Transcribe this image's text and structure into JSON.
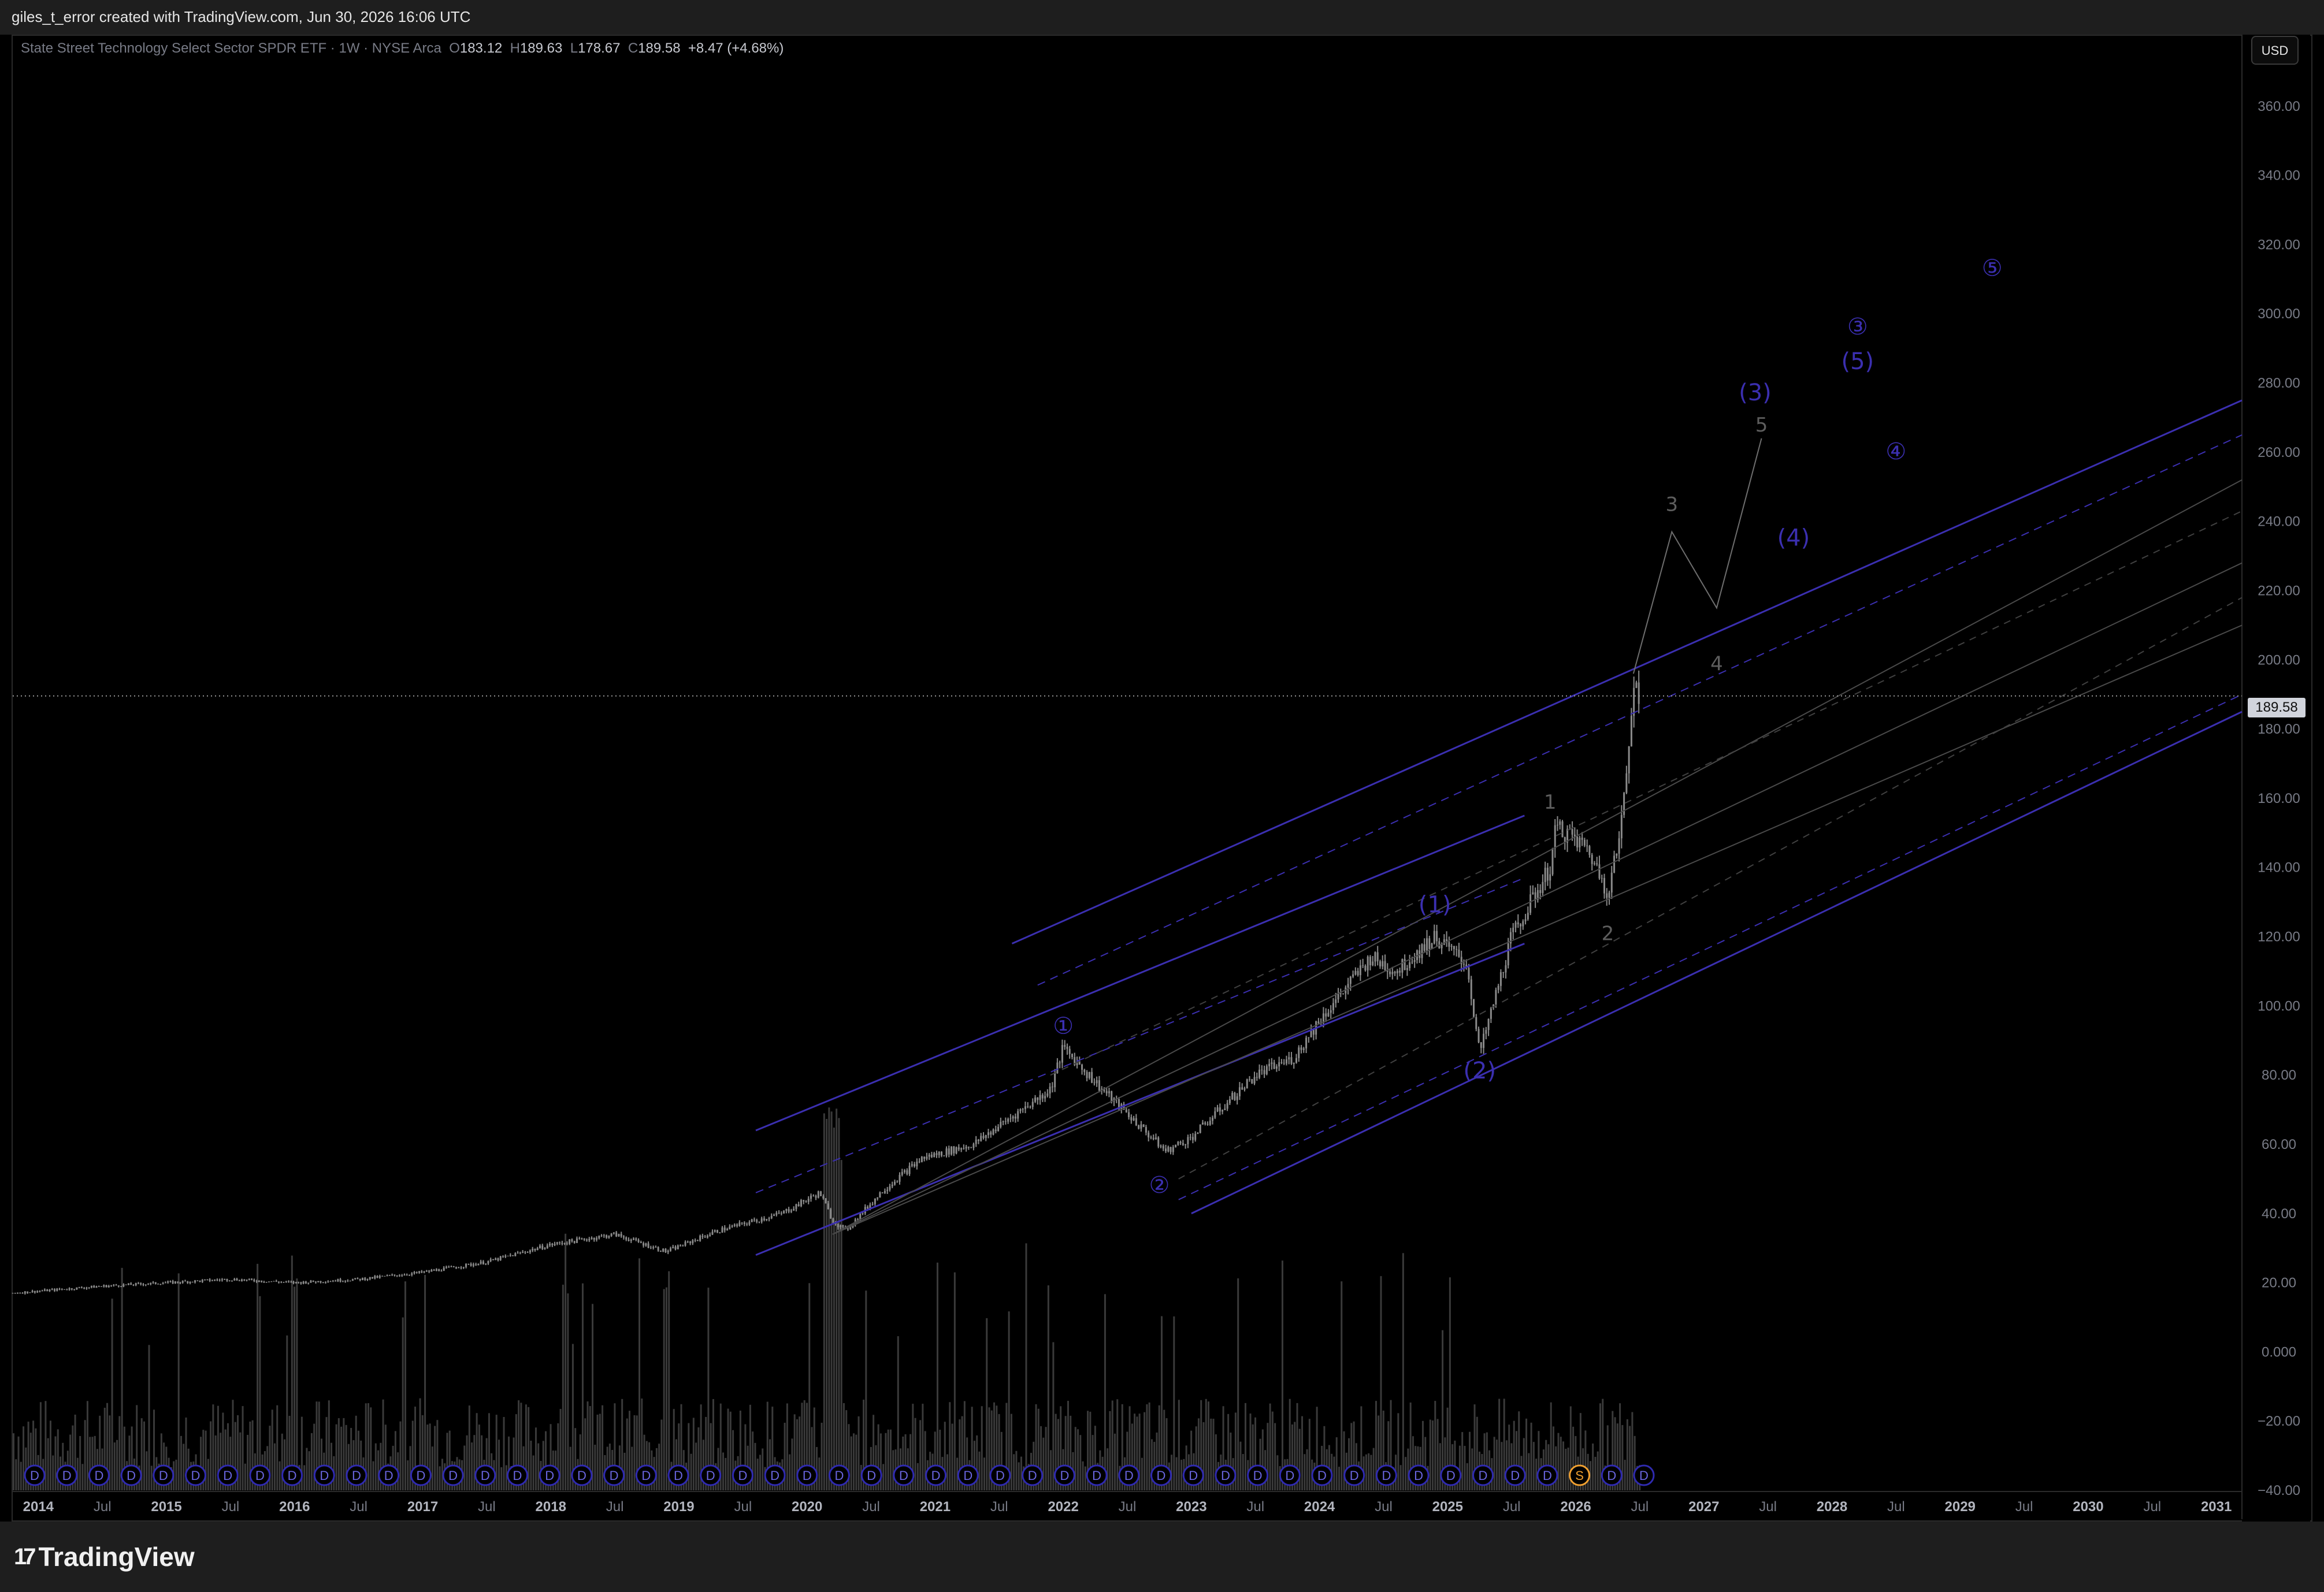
{
  "header": {
    "created_by": "giles_t_error created with TradingView.com, Jun 30, 2026 16:06 UTC"
  },
  "legend": {
    "symbol": "State Street Technology Select Sector SPDR ETF · 1W · NYSE Arca",
    "open_label": "O",
    "open": "183.12",
    "high_label": "H",
    "high": "189.63",
    "low_label": "L",
    "low": "178.67",
    "close_label": "C",
    "close": "189.58",
    "change": "+8.47 (+4.68%)"
  },
  "currency_button": "USD",
  "current_price_label": "189.58",
  "brand": {
    "name": "TradingView",
    "logo_glyph": "17"
  },
  "colors": {
    "background": "#000000",
    "candle": "#8a8a8a",
    "volume": "#3a3a3a",
    "channel_line": "#3b2fb0",
    "fork_line": "#6e6e6e",
    "wave_label_major": "#3b2fb0",
    "wave_label_minor": "#5d5d5d",
    "dividend_marker": "#2f2ab0",
    "split_marker": "#f0a030"
  },
  "chart_data": {
    "type": "candlestick",
    "symbol": "State Street Technology Select Sector SPDR ETF",
    "interval": "1W",
    "exchange": "NYSE Arca",
    "ylim": [
      -40,
      380
    ],
    "y_ticks": [
      -40,
      -20,
      0,
      20,
      40,
      60,
      80,
      100,
      120,
      140,
      160,
      180,
      200,
      220,
      240,
      260,
      280,
      300,
      320,
      340,
      360
    ],
    "y_tick_labels": [
      "−40.00",
      "−20.00",
      "0.000",
      "20.00",
      "40.00",
      "60.00",
      "80.00",
      "100.00",
      "120.00",
      "140.00",
      "160.00",
      "180.00",
      "200.00",
      "220.00",
      "240.00",
      "260.00",
      "280.00",
      "300.00",
      "320.00",
      "340.00",
      "360.00"
    ],
    "xlim": [
      2013.8,
      2031.2
    ],
    "x_ticks": [
      2014,
      2014.5,
      2015,
      2015.5,
      2016,
      2016.5,
      2017,
      2017.5,
      2018,
      2018.5,
      2019,
      2019.5,
      2020,
      2020.5,
      2021,
      2021.5,
      2022,
      2022.5,
      2023,
      2023.5,
      2024,
      2024.5,
      2025,
      2025.5,
      2026,
      2026.5,
      2027,
      2027.5,
      2028,
      2028.5,
      2029,
      2029.5,
      2030,
      2030.5,
      2031
    ],
    "x_tick_labels": [
      "2014",
      "Jul",
      "2015",
      "Jul",
      "2016",
      "Jul",
      "2017",
      "Jul",
      "2018",
      "Jul",
      "2019",
      "Jul",
      "2020",
      "Jul",
      "2021",
      "Jul",
      "2022",
      "Jul",
      "2023",
      "Jul",
      "2024",
      "Jul",
      "2025",
      "Jul",
      "2026",
      "Jul",
      "2027",
      "Jul",
      "2028",
      "Jul",
      "2029",
      "Jul",
      "2030",
      "Jul",
      "2031"
    ],
    "price_path": [
      [
        2013.8,
        17
      ],
      [
        2014.5,
        19
      ],
      [
        2015.0,
        20
      ],
      [
        2015.5,
        21
      ],
      [
        2016.0,
        20
      ],
      [
        2016.5,
        21
      ],
      [
        2017.0,
        23
      ],
      [
        2017.5,
        26
      ],
      [
        2018.0,
        31
      ],
      [
        2018.5,
        34
      ],
      [
        2018.9,
        29
      ],
      [
        2019.3,
        35
      ],
      [
        2019.8,
        40
      ],
      [
        2020.1,
        46
      ],
      [
        2020.2,
        38
      ],
      [
        2020.3,
        35
      ],
      [
        2020.6,
        47
      ],
      [
        2020.9,
        56
      ],
      [
        2021.3,
        60
      ],
      [
        2021.9,
        76
      ],
      [
        2022.0,
        88
      ],
      [
        2022.3,
        76
      ],
      [
        2022.8,
        58
      ],
      [
        2023.0,
        62
      ],
      [
        2023.5,
        80
      ],
      [
        2023.8,
        85
      ],
      [
        2024.0,
        96
      ],
      [
        2024.4,
        114
      ],
      [
        2024.6,
        110
      ],
      [
        2024.9,
        120
      ],
      [
        2025.15,
        112
      ],
      [
        2025.25,
        86
      ],
      [
        2025.5,
        120
      ],
      [
        2025.8,
        140
      ],
      [
        2025.85,
        152
      ],
      [
        2026.1,
        145
      ],
      [
        2026.25,
        133
      ],
      [
        2026.35,
        150
      ],
      [
        2026.42,
        178
      ],
      [
        2026.45,
        196
      ],
      [
        2026.5,
        189.58
      ]
    ],
    "volume_scale_note": "volume histogram drawn beneath price, unlabeled",
    "wave_labels": [
      {
        "text": "①",
        "x": 2022.0,
        "y": 92,
        "degree": "primary"
      },
      {
        "text": "②",
        "x": 2022.75,
        "y": 46,
        "degree": "primary"
      },
      {
        "text": "(1)",
        "x": 2024.9,
        "y": 127,
        "degree": "intermediate"
      },
      {
        "text": "(2)",
        "x": 2025.25,
        "y": 79,
        "degree": "intermediate"
      },
      {
        "text": "1",
        "x": 2025.8,
        "y": 157,
        "degree": "minor"
      },
      {
        "text": "2",
        "x": 2026.25,
        "y": 119,
        "degree": "minor"
      },
      {
        "text": "3",
        "x": 2026.75,
        "y": 243,
        "degree": "minor"
      },
      {
        "text": "4",
        "x": 2027.1,
        "y": 197,
        "degree": "minor"
      },
      {
        "text": "5",
        "x": 2027.45,
        "y": 266,
        "degree": "minor"
      },
      {
        "text": "(3)",
        "x": 2027.4,
        "y": 275,
        "degree": "intermediate"
      },
      {
        "text": "(4)",
        "x": 2027.7,
        "y": 233,
        "degree": "intermediate"
      },
      {
        "text": "(5)",
        "x": 2028.2,
        "y": 284,
        "degree": "intermediate"
      },
      {
        "text": "③",
        "x": 2028.2,
        "y": 294,
        "degree": "primary"
      },
      {
        "text": "④",
        "x": 2028.5,
        "y": 258,
        "degree": "primary"
      },
      {
        "text": "⑤",
        "x": 2029.25,
        "y": 311,
        "degree": "primary"
      }
    ],
    "projection_path": [
      [
        2026.45,
        196
      ],
      [
        2026.75,
        237
      ],
      [
        2027.1,
        215
      ],
      [
        2027.45,
        264
      ]
    ],
    "channels": [
      {
        "style": "solid",
        "points": [
          [
            2019.6,
            28
          ],
          [
            2025.6,
            118
          ]
        ]
      },
      {
        "style": "solid",
        "points": [
          [
            2019.6,
            64
          ],
          [
            2025.6,
            155
          ]
        ]
      },
      {
        "style": "solid",
        "points": [
          [
            2021.6,
            118
          ],
          [
            2031.2,
            275
          ]
        ]
      },
      {
        "style": "solid",
        "points": [
          [
            2023.0,
            40
          ],
          [
            2031.2,
            185
          ]
        ]
      },
      {
        "style": "dashed",
        "points": [
          [
            2019.6,
            46
          ],
          [
            2025.6,
            137
          ]
        ]
      },
      {
        "style": "dashed",
        "points": [
          [
            2021.8,
            106
          ],
          [
            2031.2,
            265
          ]
        ]
      },
      {
        "style": "dashed",
        "points": [
          [
            2022.9,
            44
          ],
          [
            2031.2,
            190
          ]
        ]
      },
      {
        "style": "fork",
        "points": [
          [
            2020.2,
            34
          ],
          [
            2031.2,
            252
          ]
        ]
      },
      {
        "style": "fork",
        "points": [
          [
            2020.2,
            34
          ],
          [
            2031.2,
            228
          ]
        ]
      },
      {
        "style": "fork",
        "points": [
          [
            2020.2,
            34
          ],
          [
            2031.2,
            210
          ]
        ]
      },
      {
        "style": "forkdash",
        "points": [
          [
            2021.9,
            80
          ],
          [
            2031.2,
            243
          ]
        ]
      },
      {
        "style": "forkdash",
        "points": [
          [
            2022.9,
            50
          ],
          [
            2031.2,
            218
          ]
        ]
      }
    ],
    "dividend_markers": {
      "label": "D",
      "count": 51,
      "split_label": "S",
      "split_index": 48
    },
    "last_price": 189.58
  }
}
